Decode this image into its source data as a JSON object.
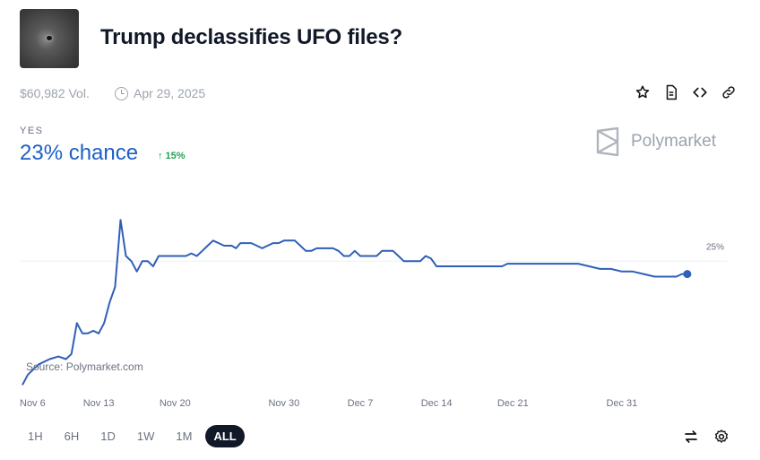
{
  "header": {
    "title": "Trump declassifies UFO files?",
    "volume": "$60,982 Vol.",
    "date": "Apr 29, 2025"
  },
  "outcome": {
    "label": "YES",
    "chance": "23% chance",
    "delta": "↑ 15%"
  },
  "brand": "Polymarket",
  "source": "Source: Polymarket.com",
  "timeframes": [
    "1H",
    "6H",
    "1D",
    "1W",
    "1M",
    "ALL"
  ],
  "active_timeframe": "ALL",
  "icons": {
    "header_tools": [
      "star-icon",
      "document-icon",
      "embed-code-icon",
      "link-icon"
    ],
    "footer_tools": [
      "swap-arrows-icon",
      "gear-icon"
    ]
  },
  "colors": {
    "line": "#2f5fb8",
    "accent": "#1d5fc7",
    "up": "#22a356"
  },
  "chart_data": {
    "type": "line",
    "ylim": [
      0,
      40
    ],
    "grid": false,
    "reference_line_label": "25%",
    "reference_line_value": 25,
    "end_label": "25%",
    "x_ticks": [
      {
        "day": 0,
        "label": "Nov 6"
      },
      {
        "day": 7,
        "label": "Nov 13"
      },
      {
        "day": 14,
        "label": "Nov 20"
      },
      {
        "day": 24,
        "label": "Nov 30"
      },
      {
        "day": 31,
        "label": "Dec 7"
      },
      {
        "day": 38,
        "label": "Dec 14"
      },
      {
        "day": 45,
        "label": "Dec 21"
      },
      {
        "day": 55,
        "label": "Dec 31"
      }
    ],
    "x_range": [
      0,
      62
    ],
    "series": [
      {
        "points": [
          [
            0,
            1
          ],
          [
            0.5,
            3
          ],
          [
            1.5,
            5
          ],
          [
            2.5,
            6
          ],
          [
            3.3,
            6.5
          ],
          [
            4,
            6
          ],
          [
            4.5,
            7
          ],
          [
            5,
            13
          ],
          [
            5.5,
            11
          ],
          [
            6,
            11
          ],
          [
            6.5,
            11.5
          ],
          [
            7,
            11
          ],
          [
            7.5,
            13
          ],
          [
            8,
            17
          ],
          [
            8.5,
            20
          ],
          [
            9,
            33
          ],
          [
            9.5,
            26
          ],
          [
            10,
            25
          ],
          [
            10.5,
            23
          ],
          [
            11,
            25
          ],
          [
            11.5,
            25
          ],
          [
            12,
            24
          ],
          [
            12.5,
            26
          ],
          [
            13,
            26
          ],
          [
            15,
            26
          ],
          [
            15.5,
            26.5
          ],
          [
            16,
            26
          ],
          [
            16.5,
            27
          ],
          [
            17,
            28
          ],
          [
            17.5,
            29
          ],
          [
            18,
            28.5
          ],
          [
            18.5,
            28
          ],
          [
            19.2,
            28
          ],
          [
            19.6,
            27.5
          ],
          [
            20,
            28.5
          ],
          [
            20.5,
            28.5
          ],
          [
            21,
            28.5
          ],
          [
            21.5,
            28
          ],
          [
            22,
            27.5
          ],
          [
            22.5,
            28
          ],
          [
            23,
            28.5
          ],
          [
            23.5,
            28.5
          ],
          [
            24,
            29
          ],
          [
            24.5,
            29
          ],
          [
            25,
            29
          ],
          [
            25.5,
            28
          ],
          [
            26,
            27
          ],
          [
            26.5,
            27
          ],
          [
            27,
            27.5
          ],
          [
            28,
            27.5
          ],
          [
            28.5,
            27.5
          ],
          [
            29,
            27
          ],
          [
            29.5,
            26
          ],
          [
            30,
            26
          ],
          [
            30.5,
            27
          ],
          [
            31,
            26
          ],
          [
            32.5,
            26
          ],
          [
            33,
            27
          ],
          [
            33.5,
            27
          ],
          [
            34,
            27
          ],
          [
            34.5,
            26
          ],
          [
            35,
            25
          ],
          [
            36.5,
            25
          ],
          [
            37,
            26
          ],
          [
            37.5,
            25.5
          ],
          [
            38,
            24
          ],
          [
            44,
            24
          ],
          [
            44.5,
            24.5
          ],
          [
            51,
            24.5
          ],
          [
            52,
            24
          ],
          [
            53,
            23.5
          ],
          [
            54,
            23.5
          ],
          [
            55,
            23
          ],
          [
            56,
            23
          ],
          [
            57,
            22.5
          ],
          [
            58,
            22
          ],
          [
            59,
            22
          ],
          [
            60,
            22
          ],
          [
            60.5,
            22.5
          ],
          [
            61,
            22.5
          ]
        ]
      }
    ]
  }
}
